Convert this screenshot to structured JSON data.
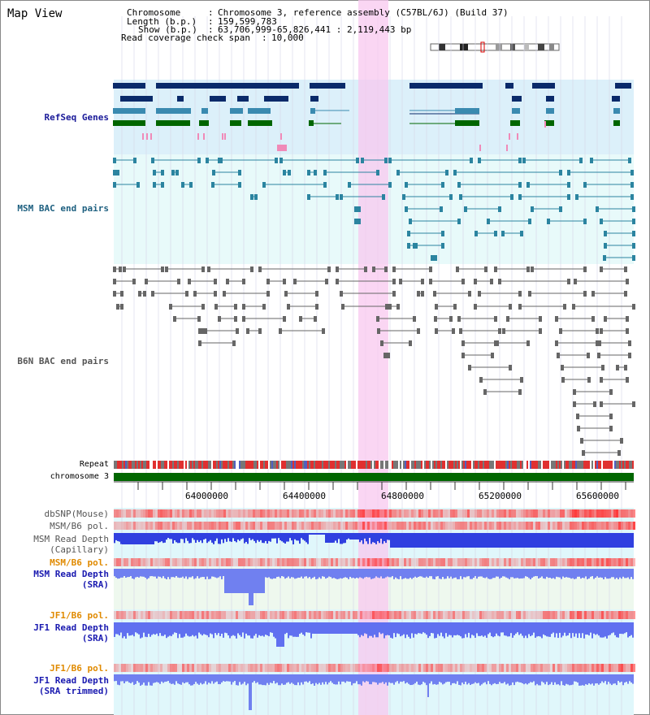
{
  "title": "Map View",
  "header": {
    "chromosome_label": "Chromosome",
    "chromosome_value": "Chromosome 3, reference assembly (C57BL/6J) (Build 37)",
    "length_label": "Length (b.p.)",
    "length_value": "159,599,783",
    "show_label": "Show (b.p.)",
    "show_value": "63,706,999-65,826,441 : 2,119,443 bp",
    "coverage_label": "Read coverage check span",
    "coverage_value": "10,000"
  },
  "tracks": {
    "refseq": "RefSeq Genes",
    "msm_bac": "MSM BAC end pairs",
    "b6n_bac": "B6N BAC end pairs",
    "repeat": "Repeat",
    "chromosome": "chromosome 3",
    "dbsnp": "dbSNP(Mouse)",
    "msm_b6_pol_1": "MSM/B6 pol.",
    "msm_read_depth_cap_1": "MSM Read Depth",
    "msm_read_depth_cap_2": "(Capillary)",
    "msm_b6_pol_2": "MSM/B6 pol.",
    "msm_read_depth_sra_1": "MSM Read Depth",
    "msm_read_depth_sra_2": "(SRA)",
    "jf1_b6_pol_1": "JF1/B6 pol.",
    "jf1_read_depth_1": "JF1 Read Depth",
    "jf1_read_depth_2": "(SRA)",
    "jf1_b6_pol_2": "JF1/B6 pol.",
    "jf1_read_depth_trim_1": "JF1 Read Depth",
    "jf1_read_depth_trim_2": "(SRA trimmed)"
  },
  "axis_ticks": [
    "64000000",
    "64400000",
    "64800000",
    "65200000",
    "65600000"
  ],
  "colors": {
    "refseq_label": "#1a1a99",
    "msm_bac_label": "#1e6080",
    "b6n_bac_label": "#555555",
    "msm_pol_label": "#555555",
    "orange_label": "#e08a00",
    "blue_label": "#1a1ab0",
    "highlight": "#f8d0f0",
    "chromosome_bar": "#006600"
  }
}
